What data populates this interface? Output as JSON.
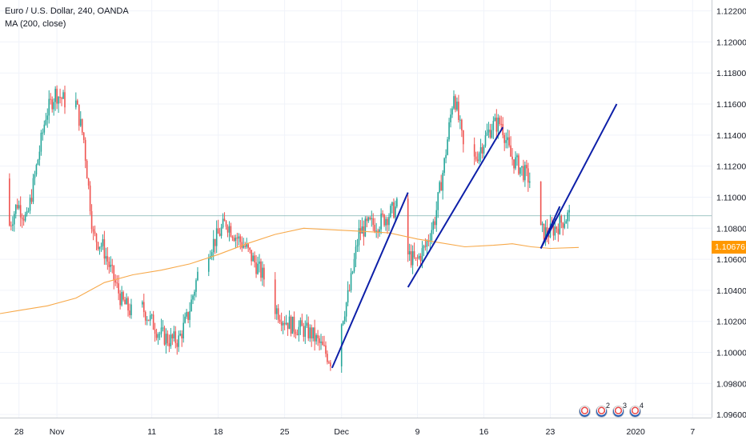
{
  "legend": {
    "title": "Euro / U.S. Dollar, 240, OANDA",
    "indicator": "MA (200, close)"
  },
  "current_price_label": "1.10676",
  "event_markers": [
    {
      "icon": "us-flag-icon",
      "count": ""
    },
    {
      "icon": "us-flag-icon",
      "count": "2"
    },
    {
      "icon": "us-flag-icon",
      "count": "3"
    },
    {
      "icon": "us-flag-icon",
      "count": "4"
    }
  ],
  "colors": {
    "up": "#26a69a",
    "down": "#ef5350",
    "ma": "#f7a94a",
    "trendline": "#0d1fa8",
    "price_tag": "#ff9800",
    "price_line": "#7fb3b0"
  },
  "chart_data": {
    "type": "candlestick",
    "title": "Euro / U.S. Dollar, 240, OANDA",
    "y_axis": {
      "ticks": [
        "1.12200",
        "1.12000",
        "1.11800",
        "1.11600",
        "1.11400",
        "1.11200",
        "1.11000",
        "1.10800",
        "1.10600",
        "1.10400",
        "1.10200",
        "1.10000",
        "1.09800",
        "1.09600"
      ],
      "range": [
        1.0958,
        1.1227
      ],
      "position": "right"
    },
    "x_axis": {
      "ticks": [
        "28",
        "Nov",
        "11",
        "18",
        "25",
        "Dec",
        "9",
        "16",
        "23",
        "2020",
        "7"
      ],
      "range": [
        "2019-10-26",
        "2020-01-09"
      ]
    },
    "grid": true,
    "current_price": 1.10676,
    "last_close_line": 1.1088,
    "price_path": [
      [
        "2019-10-26",
        1.1112
      ],
      [
        "2019-10-27",
        1.1079
      ],
      [
        "2019-10-28",
        1.1096
      ],
      [
        "2019-10-29",
        1.1085
      ],
      [
        "2019-10-30",
        1.1119
      ],
      [
        "2019-10-31",
        1.1153
      ],
      [
        "2019-11-01",
        1.1167
      ],
      [
        "2019-11-02",
        1.1162
      ],
      [
        "2019-11-03",
        1.1165
      ],
      [
        "2019-11-04",
        1.1137
      ],
      [
        "2019-11-05",
        1.1075
      ],
      [
        "2019-11-06",
        1.1068
      ],
      [
        "2019-11-07",
        1.105
      ],
      [
        "2019-11-08",
        1.1033
      ],
      [
        "2019-11-09",
        1.1026
      ],
      [
        "2019-11-10",
        1.103
      ],
      [
        "2019-11-11",
        1.1021
      ],
      [
        "2019-11-12",
        1.1012
      ],
      [
        "2019-11-13",
        1.1008
      ],
      [
        "2019-11-14",
        1.1008
      ],
      [
        "2019-11-15",
        1.1024
      ],
      [
        "2019-11-16",
        1.105
      ],
      [
        "2019-11-17",
        1.1065
      ],
      [
        "2019-11-18",
        1.1074
      ],
      [
        "2019-11-19",
        1.1084
      ],
      [
        "2019-11-20",
        1.1075
      ],
      [
        "2019-11-21",
        1.1068
      ],
      [
        "2019-11-22",
        1.1058
      ],
      [
        "2019-11-23",
        1.1048
      ],
      [
        "2019-11-24",
        1.103
      ],
      [
        "2019-11-25",
        1.1022
      ],
      [
        "2019-11-26",
        1.1017
      ],
      [
        "2019-11-27",
        1.1015
      ],
      [
        "2019-11-28",
        1.1012
      ],
      [
        "2019-11-29",
        1.1004
      ],
      [
        "2019-11-30",
        1.0995
      ],
      [
        "2019-12-01",
        1.1016
      ],
      [
        "2019-12-02",
        1.104
      ],
      [
        "2019-12-03",
        1.1077
      ],
      [
        "2019-12-04",
        1.1082
      ],
      [
        "2019-12-05",
        1.1083
      ],
      [
        "2019-12-06",
        1.1088
      ],
      [
        "2019-12-07",
        1.1094
      ],
      [
        "2019-12-08",
        1.1064
      ],
      [
        "2019-12-09",
        1.1058
      ],
      [
        "2019-12-10",
        1.1068
      ],
      [
        "2019-12-11",
        1.1086
      ],
      [
        "2019-12-12",
        1.1122
      ],
      [
        "2019-12-13",
        1.1168
      ],
      [
        "2019-12-14",
        1.1132
      ],
      [
        "2019-12-15",
        1.1122
      ],
      [
        "2019-12-16",
        1.1134
      ],
      [
        "2019-12-17",
        1.1146
      ],
      [
        "2019-12-18",
        1.1148
      ],
      [
        "2019-12-19",
        1.1126
      ],
      [
        "2019-12-20",
        1.1119
      ],
      [
        "2019-12-21",
        1.1111
      ],
      [
        "2019-12-22",
        1.1078
      ],
      [
        "2019-12-23",
        1.1077
      ],
      [
        "2019-12-24",
        1.1082
      ],
      [
        "2019-12-25",
        1.1088
      ]
    ],
    "series": [
      {
        "kind": "moving-average",
        "points": [
          [
            "2019-10-26",
            1.1025
          ],
          [
            "2019-10-28",
            1.1027
          ],
          [
            "2019-10-31",
            1.103
          ],
          [
            "2019-11-03",
            1.1035
          ],
          [
            "2019-11-06",
            1.1045
          ],
          [
            "2019-11-09",
            1.105
          ],
          [
            "2019-11-12",
            1.1053
          ],
          [
            "2019-11-15",
            1.1057
          ],
          [
            "2019-11-18",
            1.1063
          ],
          [
            "2019-11-21",
            1.107
          ],
          [
            "2019-11-24",
            1.1076
          ],
          [
            "2019-11-27",
            1.108
          ],
          [
            "2019-11-30",
            1.1079
          ],
          [
            "2019-12-03",
            1.1078
          ],
          [
            "2019-12-06",
            1.1077
          ],
          [
            "2019-12-09",
            1.1073
          ],
          [
            "2019-12-11",
            1.1071
          ],
          [
            "2019-12-14",
            1.1068
          ],
          [
            "2019-12-17",
            1.1069
          ],
          [
            "2019-12-19",
            1.107
          ],
          [
            "2019-12-21",
            1.1068
          ],
          [
            "2019-12-23",
            1.1067
          ],
          [
            "2019-12-26",
            1.10676
          ]
        ]
      }
    ],
    "trendlines": [
      {
        "from": [
          "2019-11-30",
          1.099
        ],
        "to": [
          "2019-12-08",
          1.1103
        ]
      },
      {
        "from": [
          "2019-12-08",
          1.1042
        ],
        "to": [
          "2019-12-18",
          1.1145
        ]
      },
      {
        "from": [
          "2019-12-22",
          1.1067
        ],
        "to": [
          "2019-12-24",
          1.1094
        ]
      },
      {
        "from": [
          "2019-12-22",
          1.1067
        ],
        "to": [
          "2019-12-30",
          1.116
        ]
      }
    ]
  }
}
